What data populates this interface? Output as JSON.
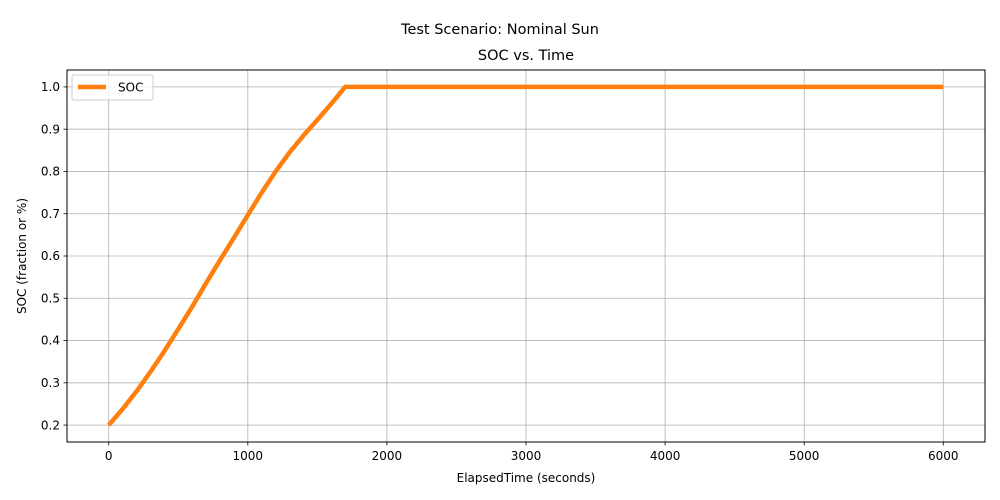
{
  "figure": {
    "suptitle": "Test Scenario: Nominal Sun"
  },
  "chart_data": {
    "type": "line",
    "title": "SOC vs. Time",
    "xlabel": "ElapsedTime (seconds)",
    "ylabel": "SOC (fraction or %)",
    "xlim": [
      -300,
      6300
    ],
    "ylim": [
      0.16,
      1.04
    ],
    "xticks": [
      0,
      1000,
      2000,
      3000,
      4000,
      5000,
      6000
    ],
    "xtick_labels": [
      "0",
      "1000",
      "2000",
      "3000",
      "4000",
      "5000",
      "6000"
    ],
    "yticks": [
      0.2,
      0.3,
      0.4,
      0.5,
      0.6,
      0.7,
      0.8,
      0.9,
      1.0
    ],
    "ytick_labels": [
      "0.2",
      "0.3",
      "0.4",
      "0.5",
      "0.6",
      "0.7",
      "0.8",
      "0.9",
      "1.0"
    ],
    "grid": true,
    "legend_position": "upper-left",
    "series": [
      {
        "name": "SOC",
        "color": "#ff7f0e",
        "x": [
          0,
          100,
          200,
          300,
          400,
          500,
          600,
          700,
          800,
          900,
          1000,
          1100,
          1200,
          1300,
          1400,
          1500,
          1600,
          1700,
          1790,
          1800,
          2000,
          3000,
          4000,
          5000,
          6000
        ],
        "y": [
          0.2,
          0.238,
          0.28,
          0.326,
          0.375,
          0.427,
          0.48,
          0.536,
          0.59,
          0.643,
          0.697,
          0.75,
          0.8,
          0.845,
          0.885,
          0.922,
          0.96,
          1.0,
          1.0,
          1.0,
          1.0,
          1.0,
          1.0,
          1.0,
          1.0
        ]
      }
    ]
  }
}
